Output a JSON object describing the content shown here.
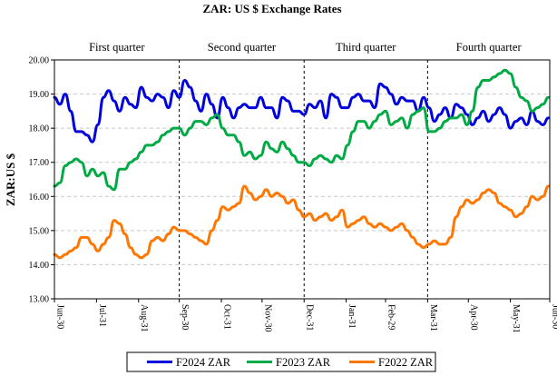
{
  "chart_data": {
    "type": "line",
    "title": "ZAR: US $ Exchange Rates",
    "xlabel": "",
    "ylabel": "ZAR:US $",
    "ylim": [
      13.0,
      20.0
    ],
    "yticks": [
      "13.00",
      "14.00",
      "15.00",
      "16.00",
      "17.00",
      "18.00",
      "19.00",
      "20.00"
    ],
    "xrange": [
      0,
      365
    ],
    "xticks": [
      {
        "label": "Jun-30",
        "day": 0
      },
      {
        "label": "Jul-31",
        "day": 31
      },
      {
        "label": "Aug-31",
        "day": 62
      },
      {
        "label": "Sep-30",
        "day": 92
      },
      {
        "label": "Oct-31",
        "day": 123
      },
      {
        "label": "Nov-30",
        "day": 153
      },
      {
        "label": "Dec-31",
        "day": 184
      },
      {
        "label": "Jan-31",
        "day": 215
      },
      {
        "label": "Feb-29",
        "day": 244
      },
      {
        "label": "Mar-31",
        "day": 275
      },
      {
        "label": "Apr-30",
        "day": 305
      },
      {
        "label": "May-31",
        "day": 336
      },
      {
        "label": "Jun-30",
        "day": 366
      }
    ],
    "quarters": [
      {
        "label": "First quarter",
        "start": 0,
        "end": 92
      },
      {
        "label": "Second quarter",
        "start": 92,
        "end": 184
      },
      {
        "label": "Third quarter",
        "start": 184,
        "end": 275
      },
      {
        "label": "Fourth quarter",
        "start": 275,
        "end": 366
      }
    ],
    "grid": true,
    "legend_position": "bottom",
    "series": [
      {
        "name": "F2024 ZAR",
        "color": "#0000dd",
        "x": [
          0,
          4,
          8,
          12,
          16,
          20,
          24,
          28,
          32,
          36,
          40,
          44,
          48,
          52,
          56,
          60,
          64,
          68,
          72,
          76,
          80,
          84,
          88,
          92,
          96,
          100,
          104,
          108,
          112,
          116,
          120,
          124,
          128,
          132,
          136,
          140,
          144,
          148,
          152,
          156,
          160,
          164,
          168,
          172,
          176,
          180,
          184,
          188,
          192,
          196,
          200,
          204,
          208,
          212,
          216,
          220,
          224,
          228,
          232,
          236,
          240,
          244,
          248,
          252,
          256,
          260,
          264,
          268,
          272,
          276,
          280,
          284,
          288,
          292,
          296,
          300,
          304,
          308,
          312,
          316,
          320,
          324,
          328,
          332,
          336,
          340,
          344,
          348,
          352,
          356,
          360,
          364
        ],
        "values": [
          18.9,
          18.7,
          19.0,
          18.5,
          17.9,
          17.9,
          17.8,
          17.6,
          18.1,
          18.9,
          19.1,
          18.8,
          18.5,
          18.9,
          18.7,
          18.6,
          19.2,
          18.9,
          18.8,
          19.0,
          18.9,
          18.6,
          19.1,
          18.9,
          19.4,
          19.2,
          18.8,
          18.5,
          19.0,
          18.7,
          18.3,
          18.9,
          18.6,
          18.3,
          18.6,
          18.7,
          18.6,
          18.6,
          18.9,
          18.6,
          18.6,
          18.3,
          18.9,
          18.8,
          18.5,
          18.5,
          18.4,
          18.7,
          18.6,
          18.8,
          18.3,
          19.0,
          18.9,
          18.6,
          18.6,
          18.9,
          19.0,
          18.8,
          18.8,
          18.6,
          19.3,
          19.2,
          19.0,
          18.7,
          18.9,
          18.8,
          18.8,
          18.5,
          18.9,
          18.6,
          18.2,
          18.4,
          18.6,
          18.3,
          18.7,
          18.6,
          18.4,
          18.1,
          18.3,
          18.5,
          18.2,
          18.4,
          18.6,
          18.4,
          18.0,
          18.2,
          18.3,
          18.1,
          18.5,
          18.2,
          18.1,
          18.3
        ]
      },
      {
        "name": "F2023 ZAR",
        "color": "#00aa44",
        "x": [
          0,
          4,
          8,
          12,
          16,
          20,
          24,
          28,
          32,
          36,
          40,
          44,
          48,
          52,
          56,
          60,
          64,
          68,
          72,
          76,
          80,
          84,
          88,
          92,
          96,
          100,
          104,
          108,
          112,
          116,
          120,
          124,
          128,
          132,
          136,
          140,
          144,
          148,
          152,
          156,
          160,
          164,
          168,
          172,
          176,
          180,
          184,
          188,
          192,
          196,
          200,
          204,
          208,
          212,
          216,
          220,
          224,
          228,
          232,
          236,
          240,
          244,
          248,
          252,
          256,
          260,
          264,
          268,
          272,
          276,
          280,
          284,
          288,
          292,
          296,
          300,
          304,
          308,
          312,
          316,
          320,
          324,
          328,
          332,
          336,
          340,
          344,
          348,
          352,
          356,
          360,
          364
        ],
        "values": [
          16.3,
          16.4,
          16.9,
          17.0,
          17.1,
          17.0,
          16.6,
          16.8,
          16.6,
          16.7,
          16.3,
          16.2,
          16.8,
          16.8,
          17.0,
          17.1,
          17.3,
          17.5,
          17.5,
          17.6,
          17.8,
          17.9,
          18.0,
          18.0,
          17.8,
          18.0,
          18.2,
          18.2,
          18.1,
          18.3,
          18.4,
          18.0,
          17.8,
          17.8,
          17.6,
          17.2,
          17.3,
          17.1,
          17.2,
          17.6,
          17.4,
          17.3,
          17.6,
          17.4,
          17.2,
          17.0,
          17.0,
          16.9,
          17.1,
          17.2,
          17.1,
          17.0,
          17.2,
          17.1,
          17.5,
          17.9,
          18.2,
          18.2,
          18.0,
          18.2,
          18.4,
          18.5,
          18.1,
          18.2,
          18.3,
          18.0,
          18.4,
          18.5,
          18.6,
          17.9,
          17.9,
          18.0,
          18.2,
          18.3,
          18.3,
          18.4,
          18.1,
          18.5,
          19.2,
          19.4,
          19.4,
          19.5,
          19.6,
          19.7,
          19.6,
          19.2,
          18.9,
          18.8,
          18.5,
          18.6,
          18.7,
          18.9
        ]
      },
      {
        "name": "F2022 ZAR",
        "color": "#ff7700",
        "x": [
          0,
          4,
          8,
          12,
          16,
          20,
          24,
          28,
          32,
          36,
          40,
          44,
          48,
          52,
          56,
          60,
          64,
          68,
          72,
          76,
          80,
          84,
          88,
          92,
          96,
          100,
          104,
          108,
          112,
          116,
          120,
          124,
          128,
          132,
          136,
          140,
          144,
          148,
          152,
          156,
          160,
          164,
          168,
          172,
          176,
          180,
          184,
          188,
          192,
          196,
          200,
          204,
          208,
          212,
          216,
          220,
          224,
          228,
          232,
          236,
          240,
          244,
          248,
          252,
          256,
          260,
          264,
          268,
          272,
          276,
          280,
          284,
          288,
          292,
          296,
          300,
          304,
          308,
          312,
          316,
          320,
          324,
          328,
          332,
          336,
          340,
          344,
          348,
          352,
          356,
          360,
          364
        ],
        "values": [
          14.3,
          14.2,
          14.3,
          14.4,
          14.5,
          14.8,
          14.8,
          14.6,
          14.4,
          14.6,
          14.8,
          15.3,
          15.2,
          14.9,
          14.5,
          14.3,
          14.2,
          14.3,
          14.7,
          14.8,
          14.7,
          14.9,
          15.1,
          15.0,
          15.0,
          14.9,
          14.8,
          14.7,
          14.6,
          15.0,
          15.3,
          15.7,
          15.6,
          15.7,
          15.8,
          16.3,
          16.1,
          15.9,
          16.0,
          16.2,
          16.0,
          16.1,
          16.0,
          15.8,
          15.9,
          15.6,
          15.4,
          15.5,
          15.3,
          15.4,
          15.5,
          15.3,
          15.4,
          15.6,
          15.1,
          15.2,
          15.3,
          15.4,
          15.2,
          15.1,
          15.2,
          15.1,
          15.0,
          15.1,
          15.2,
          15.0,
          14.8,
          14.6,
          14.5,
          14.6,
          14.7,
          14.6,
          14.6,
          14.8,
          15.4,
          15.7,
          15.9,
          15.8,
          15.9,
          16.1,
          16.2,
          16.1,
          15.8,
          15.7,
          15.6,
          15.4,
          15.5,
          15.7,
          16.0,
          15.9,
          16.0,
          16.3
        ]
      }
    ]
  }
}
